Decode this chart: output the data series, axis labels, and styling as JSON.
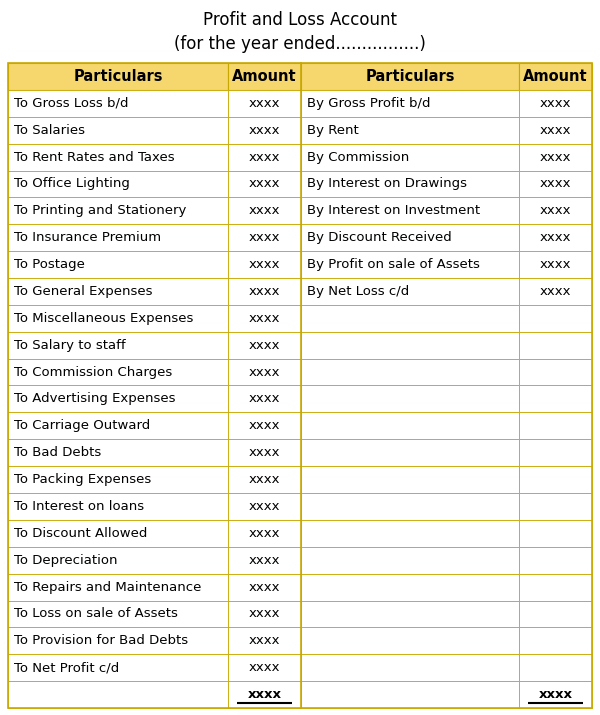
{
  "title_line1": "Profit and Loss Account",
  "title_line2": "(for the year ended................)",
  "header": [
    "Particulars",
    "Amount",
    "Particulars",
    "Amount"
  ],
  "left_rows": [
    [
      "To Gross Loss b/d",
      "xxxx"
    ],
    [
      "To Salaries",
      "xxxx"
    ],
    [
      "To Rent Rates and Taxes",
      "xxxx"
    ],
    [
      "To Office Lighting",
      "xxxx"
    ],
    [
      "To Printing and Stationery",
      "xxxx"
    ],
    [
      "To Insurance Premium",
      "xxxx"
    ],
    [
      "To Postage",
      "xxxx"
    ],
    [
      "To General Expenses",
      "xxxx"
    ],
    [
      "To Miscellaneous Expenses",
      "xxxx"
    ],
    [
      "To Salary to staff",
      "xxxx"
    ],
    [
      "To Commission Charges",
      "xxxx"
    ],
    [
      "To Advertising Expenses",
      "xxxx"
    ],
    [
      "To Carriage Outward",
      "xxxx"
    ],
    [
      "To Bad Debts",
      "xxxx"
    ],
    [
      "To Packing Expenses",
      "xxxx"
    ],
    [
      "To Interest on loans",
      "xxxx"
    ],
    [
      "To Discount Allowed",
      "xxxx"
    ],
    [
      "To Depreciation",
      "xxxx"
    ],
    [
      "To Repairs and Maintenance",
      "xxxx"
    ],
    [
      "To Loss on sale of Assets",
      "xxxx"
    ],
    [
      "To Provision for Bad Debts",
      "xxxx"
    ],
    [
      "To Net Profit c/d",
      "xxxx"
    ],
    [
      "",
      "xxxx"
    ]
  ],
  "right_rows": [
    [
      "By Gross Profit b/d",
      "xxxx"
    ],
    [
      "By Rent",
      "xxxx"
    ],
    [
      "By Commission",
      "xxxx"
    ],
    [
      "By Interest on Drawings",
      "xxxx"
    ],
    [
      "By Interest on Investment",
      "xxxx"
    ],
    [
      "By Discount Received",
      "xxxx"
    ],
    [
      "By Profit on sale of Assets",
      "xxxx"
    ],
    [
      "By Net Loss c/d",
      "xxxx"
    ],
    [
      "",
      ""
    ],
    [
      "",
      ""
    ],
    [
      "",
      ""
    ],
    [
      "",
      ""
    ],
    [
      "",
      ""
    ],
    [
      "",
      ""
    ],
    [
      "",
      ""
    ],
    [
      "",
      ""
    ],
    [
      "",
      ""
    ],
    [
      "",
      ""
    ],
    [
      "",
      ""
    ],
    [
      "",
      ""
    ],
    [
      "",
      ""
    ],
    [
      "",
      ""
    ],
    [
      "",
      "xxxx"
    ]
  ],
  "header_bg": "#F5D76E",
  "header_text_color": "#000000",
  "row_bg": "#FFFFFF",
  "grid_color": "#C8A800",
  "title_fontsize": 12,
  "header_fontsize": 10.5,
  "cell_fontsize": 9.5,
  "last_row_amount_bold": true,
  "background_color": "#FFFFFF"
}
